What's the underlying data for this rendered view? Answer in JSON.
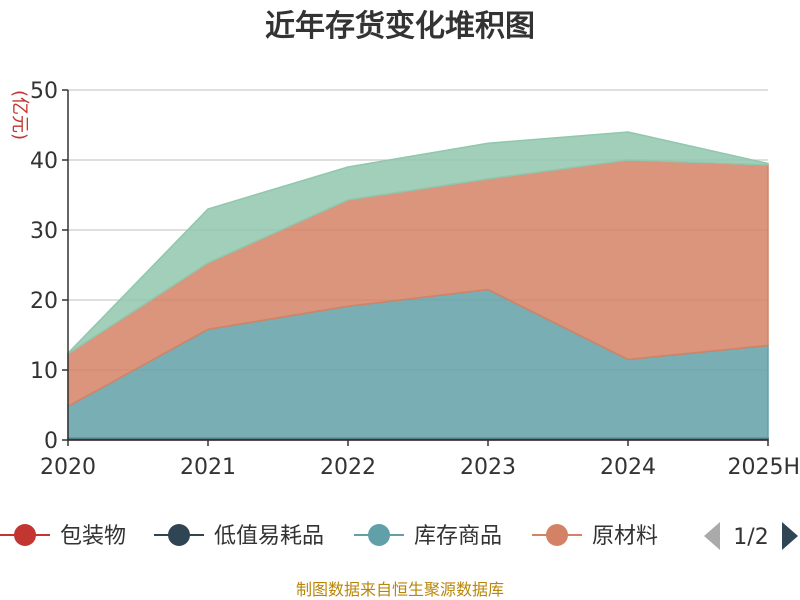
{
  "chart_data": {
    "type": "area",
    "stacked": true,
    "title": "近年存货变化堆积图",
    "ylabel": "(亿元)",
    "xlabel": "",
    "categories": [
      "2020",
      "2021",
      "2022",
      "2023",
      "2024",
      "2025H"
    ],
    "ylim": [
      0,
      50
    ],
    "yticks": [
      0,
      10,
      20,
      30,
      40,
      50
    ],
    "grid": true,
    "series": [
      {
        "name": "包装物",
        "color": "#c23531",
        "values": [
          0.1,
          0.1,
          0.1,
          0.1,
          0.1,
          0.1
        ]
      },
      {
        "name": "低值易耗品",
        "color": "#2f4554",
        "values": [
          0.2,
          0.2,
          0.2,
          0.2,
          0.2,
          0.2
        ]
      },
      {
        "name": "库存商品",
        "color": "#61a0a8",
        "values": [
          4.5,
          15.5,
          18.8,
          21.2,
          11.2,
          13.2
        ]
      },
      {
        "name": "原材料",
        "color": "#d48265",
        "values": [
          7.5,
          9.5,
          15.2,
          15.8,
          28.5,
          25.8
        ]
      },
      {
        "name": "",
        "color": "#91c7ae",
        "values": [
          0.1,
          7.7,
          4.7,
          5.1,
          4.0,
          0.2
        ]
      }
    ],
    "legend": {
      "position": "bottom",
      "page": "1/2"
    }
  },
  "footer": {
    "source": "制图数据来自恒生聚源数据库"
  }
}
